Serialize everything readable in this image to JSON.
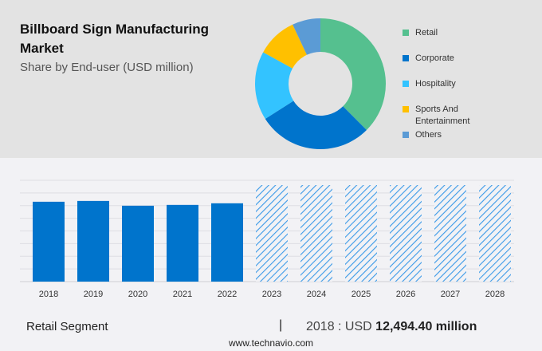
{
  "title": "Billboard Sign Manufacturing Market",
  "subtitle": "Share by End-user (USD million)",
  "colors": {
    "top_background": "#e3e3e3",
    "bottom_background": "#f2f2f5",
    "bar": "#0074cc"
  },
  "chart_data": [
    {
      "type": "pie",
      "variant": "donut",
      "legend_placement": "right",
      "slices": [
        {
          "name": "Retail",
          "value": 37.5,
          "color": "#55c08f"
        },
        {
          "name": "Corporate",
          "value": 28.5,
          "color": "#0074cc"
        },
        {
          "name": "Hospitality",
          "value": 17,
          "color": "#33c3ff"
        },
        {
          "name": "Sports And Entertainment",
          "value": 10,
          "color": "#ffc000"
        },
        {
          "name": "Others",
          "value": 7,
          "color": "#5b9bd5"
        }
      ]
    },
    {
      "type": "bar",
      "grid": true,
      "categories": [
        "2018",
        "2019",
        "2020",
        "2021",
        "2022",
        "2023",
        "2024",
        "2025",
        "2026",
        "2027",
        "2028"
      ],
      "values": [
        12494.4,
        12620,
        11870,
        12000,
        12250,
        null,
        null,
        null,
        null,
        null,
        null
      ],
      "forecast_categories": [
        "2023",
        "2024",
        "2025",
        "2026",
        "2027",
        "2028"
      ],
      "forecast_style": "hatched",
      "ylim": [
        0,
        15850
      ]
    }
  ],
  "footer": {
    "segment": "Retail Segment",
    "separator": "|",
    "year_prefix": "2018 : USD",
    "value": "12,494.40 million",
    "site": "www.technavio.com"
  }
}
